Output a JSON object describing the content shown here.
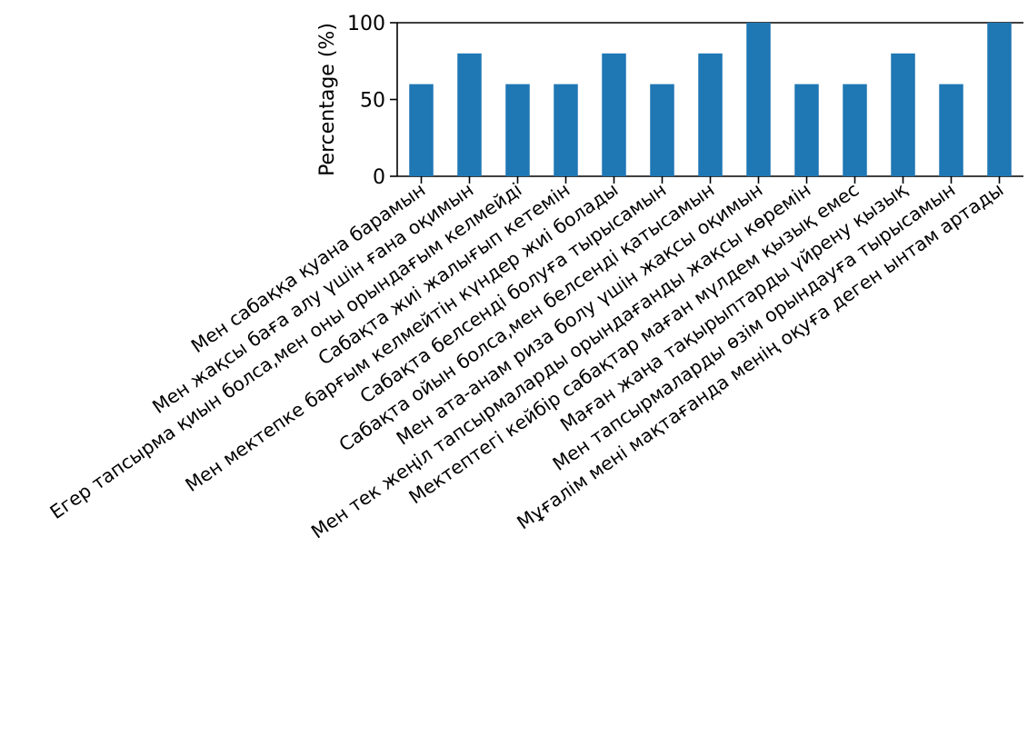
{
  "chart_data": {
    "type": "bar",
    "title": "",
    "xlabel": "",
    "ylabel": "Percentage (%)",
    "ylim": [
      0,
      100
    ],
    "yticks": [
      "0",
      "50",
      "100"
    ],
    "grid": false,
    "bar_color": "#1f77b4",
    "categories": [
      "Мен сабаққа қуана барамын",
      "Мен жақсы баға алу үшін ғана оқимын",
      "Егер тапсырма қиын болса,мен оны орындағым келмейді",
      "Сабақта жиі жалығып кетемін",
      "Мен мектепке барғым келмейтін күндер жиі болады",
      "Сабақта белсенді болуға тырысамын",
      "Сабақта ойын болса,мен белсенді қатысамын",
      "Мен ата-анам риза болу үшін жақсы оқимын",
      "Мен тек жеңіл тапсырмаларды орындағанды жақсы көремін",
      "Мектептегі кейбір сабақтар маған мүлдем қызық емес",
      "Маған жаңа тақырыптарды үйрену қызық",
      "Мен тапсырмаларды өзім орындауға тырысамын",
      "Мұғалім мені мақтағанда менің оқуға деген ынтам артады"
    ],
    "values": [
      60,
      80,
      60,
      60,
      80,
      60,
      80,
      100,
      60,
      60,
      80,
      60,
      100
    ]
  }
}
